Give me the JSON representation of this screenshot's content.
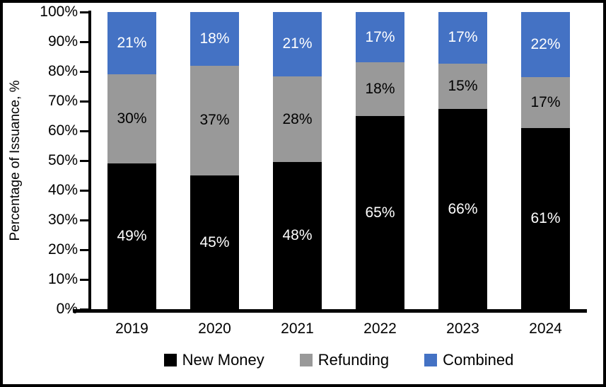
{
  "chart_data": {
    "type": "bar",
    "subtype": "stacked-100",
    "title": "",
    "ylabel": "Percentage of Issuance, %",
    "xlabel": "",
    "categories": [
      "2019",
      "2020",
      "2021",
      "2022",
      "2023",
      "2024"
    ],
    "series": [
      {
        "name": "New Money",
        "color": "#000000",
        "label_color": "#ffffff",
        "values": [
          49,
          45,
          48,
          65,
          66,
          61
        ]
      },
      {
        "name": "Refunding",
        "color": "#999999",
        "label_color": "#000000",
        "values": [
          30,
          37,
          28,
          18,
          15,
          17
        ]
      },
      {
        "name": "Combined",
        "color": "#4472C4",
        "label_color": "#ffffff",
        "values": [
          21,
          18,
          21,
          17,
          17,
          22
        ]
      }
    ],
    "value_suffix": "%",
    "y_ticks": [
      "0%",
      "10%",
      "20%",
      "30%",
      "40%",
      "50%",
      "60%",
      "70%",
      "80%",
      "90%",
      "100%"
    ],
    "ylim": [
      0,
      100
    ],
    "grid": false,
    "legend_position": "bottom",
    "axis_color": "#000000",
    "background_color": "#ffffff",
    "border_color": "#000000"
  }
}
